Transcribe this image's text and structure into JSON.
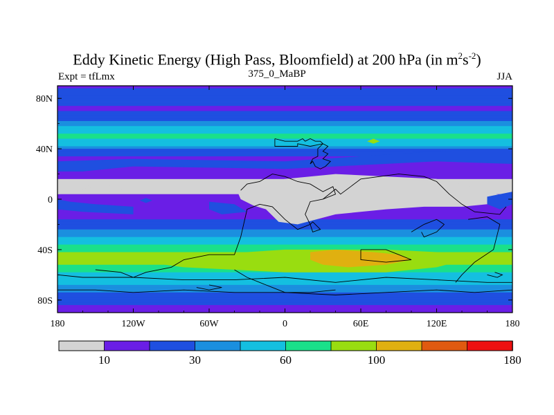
{
  "chart_data": {
    "type": "filled-contour-map",
    "title_main": "Eddy Kinetic Energy (High Pass, Bloomfield) at 200 hPa (in m",
    "title_sup1": "2",
    "title_mid": "s",
    "title_sup2": "-2",
    "title_end": ")",
    "left_label": "Expt = tfLmx",
    "center_label": "375_0_MaBP",
    "right_label": "JJA",
    "x_ticks": [
      "180",
      "120W",
      "60W",
      "0",
      "60E",
      "120E",
      "180"
    ],
    "x_tick_values": [
      -180,
      -120,
      -60,
      0,
      60,
      120,
      180
    ],
    "y_ticks": [
      "80N",
      "40N",
      "0",
      "40S",
      "80S"
    ],
    "y_tick_values": [
      80,
      40,
      0,
      -40,
      -80
    ],
    "xlim": [
      -180,
      180
    ],
    "ylim": [
      -90,
      90
    ],
    "levels": [
      10,
      20,
      30,
      40,
      60,
      80,
      100,
      120,
      140,
      180
    ],
    "colorbar_labels": [
      "10",
      "30",
      "60",
      "100",
      "180"
    ],
    "colorbar_label_levels": [
      10,
      30,
      60,
      100,
      180
    ],
    "colors": [
      "#d3d3d3",
      "#6a1ee6",
      "#1f4fe0",
      "#1b8fdf",
      "#14bfe0",
      "#1ae08a",
      "#99dd10",
      "#e0b010",
      "#e05a10",
      "#ee1010"
    ],
    "latitude_profile": [
      [
        90,
        18
      ],
      [
        82,
        28
      ],
      [
        72,
        18
      ],
      [
        64,
        27
      ],
      [
        56,
        44
      ],
      [
        50,
        65
      ],
      [
        44,
        50
      ],
      [
        38,
        25
      ],
      [
        30,
        14
      ],
      [
        22,
        12
      ],
      [
        14,
        9
      ],
      [
        6,
        9
      ],
      [
        0,
        12
      ],
      [
        -8,
        16
      ],
      [
        -16,
        19
      ],
      [
        -22,
        26
      ],
      [
        -28,
        36
      ],
      [
        -34,
        52
      ],
      [
        -40,
        70
      ],
      [
        -46,
        90
      ],
      [
        -52,
        80
      ],
      [
        -58,
        62
      ],
      [
        -64,
        48
      ],
      [
        -70,
        36
      ],
      [
        -76,
        28
      ],
      [
        -82,
        22
      ],
      [
        -90,
        14
      ]
    ]
  }
}
